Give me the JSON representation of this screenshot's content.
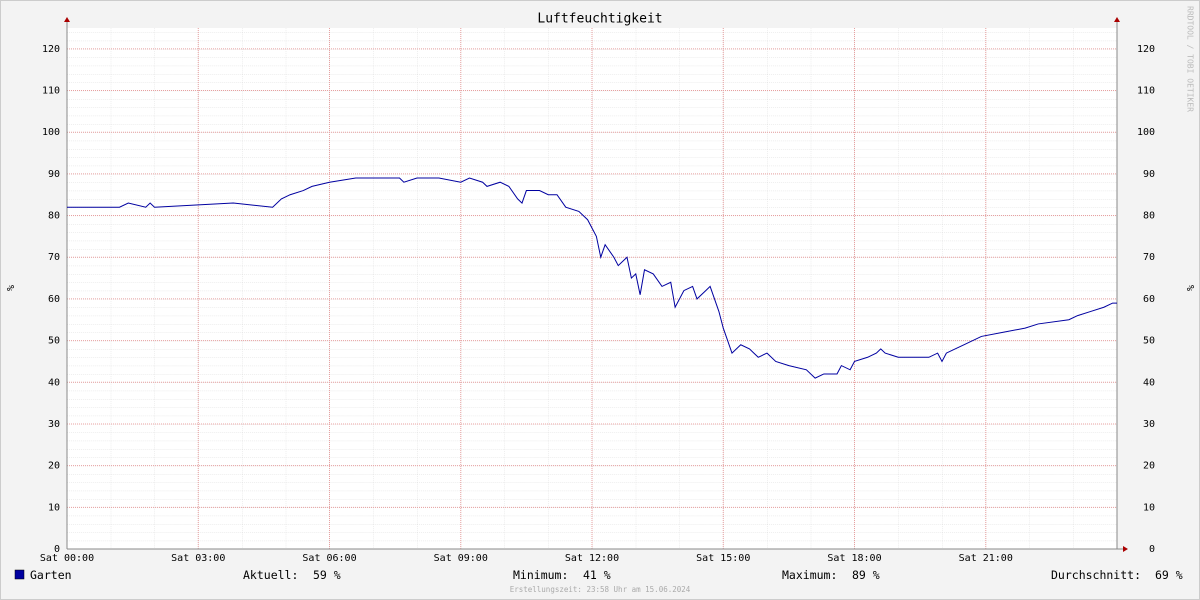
{
  "chart_data": {
    "type": "line",
    "title": "Luftfeuchtigkeit",
    "y_label": "%",
    "watermark": "RRDTOOL / TOBI OETIKER",
    "x": [
      0,
      1.2,
      1.4,
      1.8,
      1.9,
      2.0,
      3.8,
      4.7,
      4.9,
      5.1,
      5.4,
      5.6,
      6.0,
      6.6,
      7.6,
      7.7,
      8.0,
      8.5,
      9.0,
      9.2,
      9.5,
      9.6,
      9.9,
      10.1,
      10.3,
      10.4,
      10.5,
      10.8,
      11.0,
      11.2,
      11.4,
      11.7,
      11.9,
      12.1,
      12.2,
      12.3,
      12.5,
      12.6,
      12.8,
      12.9,
      13.0,
      13.1,
      13.2,
      13.4,
      13.6,
      13.8,
      13.9,
      14.1,
      14.3,
      14.4,
      14.6,
      14.7,
      14.9,
      15.0,
      15.1,
      15.2,
      15.4,
      15.6,
      15.7,
      15.8,
      16.0,
      16.2,
      16.5,
      16.9,
      17.1,
      17.3,
      17.6,
      17.7,
      17.9,
      18.0,
      18.3,
      18.5,
      18.6,
      18.7,
      19.0,
      19.7,
      19.9,
      20.0,
      20.1,
      20.3,
      20.5,
      20.9,
      21.4,
      21.9,
      22.2,
      22.9,
      23.1,
      23.4,
      23.7,
      23.9,
      24.0
    ],
    "series": [
      {
        "name": "Garten",
        "color": "#0000a0",
        "values": [
          82,
          82,
          83,
          82,
          83,
          82,
          83,
          82,
          84,
          85,
          86,
          87,
          88,
          89,
          89,
          88,
          89,
          89,
          88,
          89,
          88,
          87,
          88,
          87,
          84,
          83,
          86,
          86,
          85,
          85,
          82,
          81,
          79,
          75,
          70,
          73,
          70,
          68,
          70,
          65,
          66,
          61,
          67,
          66,
          63,
          64,
          58,
          62,
          63,
          60,
          62,
          63,
          57,
          53,
          50,
          47,
          49,
          48,
          47,
          46,
          47,
          45,
          44,
          43,
          41,
          42,
          42,
          44,
          43,
          45,
          46,
          47,
          48,
          47,
          46,
          46,
          47,
          45,
          47,
          48,
          49,
          51,
          52,
          53,
          54,
          55,
          56,
          57,
          58,
          59,
          59
        ]
      }
    ],
    "xlim": [
      0,
      24
    ],
    "ylim": [
      0,
      125
    ],
    "xticks": [
      {
        "value": 0,
        "label": "Sat 00:00"
      },
      {
        "value": 3,
        "label": "Sat 03:00"
      },
      {
        "value": 6,
        "label": "Sat 06:00"
      },
      {
        "value": 9,
        "label": "Sat 09:00"
      },
      {
        "value": 12,
        "label": "Sat 12:00"
      },
      {
        "value": 15,
        "label": "Sat 15:00"
      },
      {
        "value": 18,
        "label": "Sat 18:00"
      },
      {
        "value": 21,
        "label": "Sat 21:00"
      }
    ],
    "yticks": [
      0,
      10,
      20,
      30,
      40,
      50,
      60,
      70,
      80,
      90,
      100,
      110,
      120
    ],
    "grid": true,
    "stats": [
      {
        "label": "Aktuell:",
        "value_label": "59 %"
      },
      {
        "label": "Minimum:",
        "value_label": "41 %"
      },
      {
        "label": "Maximum:",
        "value_label": "89 %"
      },
      {
        "label": "Durchschnitt:",
        "value_label": "69 %"
      }
    ],
    "footer": "Erstellungszeit: 23:58 Uhr am 15.06.2024"
  }
}
